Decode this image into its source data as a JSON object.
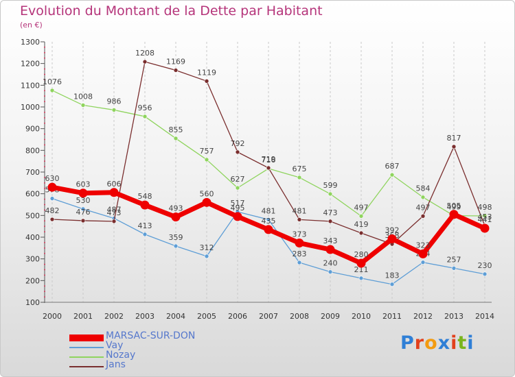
{
  "header": {
    "title": "Evolution du Montant de la Dette par Habitant",
    "unit": "(en €)"
  },
  "brand": {
    "letters": [
      "P",
      "r",
      "o",
      "x",
      "i",
      "t",
      "i"
    ],
    "colors": [
      "#2f7fd6",
      "#e2401c",
      "#f39b11",
      "#2f7fd6",
      "#e2401c",
      "#7ab51d",
      "#2f7fd6"
    ]
  },
  "chart_data": {
    "type": "line",
    "title": "Evolution du Montant de la Dette par Habitant",
    "ylabel": "(en €)",
    "xlabel": "",
    "categories": [
      "2000",
      "2001",
      "2002",
      "2003",
      "2004",
      "2005",
      "2006",
      "2007",
      "2008",
      "2009",
      "2010",
      "2011",
      "2012",
      "2013",
      "2014"
    ],
    "ylim": [
      100,
      1300
    ],
    "yticks": [
      100,
      200,
      300,
      400,
      500,
      600,
      700,
      800,
      900,
      1000,
      1100,
      1200,
      1300
    ],
    "grid": "vertical",
    "legend": "bottom-left",
    "series": [
      {
        "name": "Vay",
        "color": "#5e9ed6",
        "values": [
          578,
          530,
          487,
          413,
          359,
          312,
          517,
          481,
          283,
          240,
          211,
          183,
          284,
          257,
          230
        ]
      },
      {
        "name": "Nozay",
        "color": "#8fd45e",
        "values": [
          1076,
          1008,
          986,
          956,
          855,
          757,
          627,
          716,
          675,
          599,
          497,
          687,
          584,
          499,
          498
        ]
      },
      {
        "name": "Jans",
        "color": "#7a2e2e",
        "values": [
          482,
          476,
          473,
          1208,
          1169,
          1119,
          792,
          719,
          481,
          473,
          419,
          368,
          497,
          817,
          453
        ]
      },
      {
        "name": "MARSAC-SUR-DON",
        "color": "#ee0000",
        "values": [
          630,
          603,
          606,
          548,
          493,
          560,
          495,
          435,
          373,
          343,
          280,
          392,
          323,
          505,
          441
        ]
      }
    ]
  }
}
